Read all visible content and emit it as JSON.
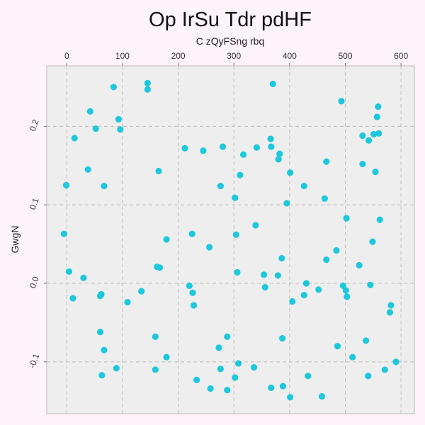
{
  "chart_data": {
    "type": "scatter",
    "title": "Op IrSu Tdr pdHF",
    "xlabel": "C zQyFSng rbq",
    "ylabel": "GwgN",
    "x_axis_position": "top",
    "xlim": [
      -36,
      624
    ],
    "ylim": [
      -0.166,
      0.277
    ],
    "x_ticks": [
      0,
      100,
      200,
      300,
      400,
      500,
      600
    ],
    "y_ticks": [
      -0.1,
      0.0,
      0.1,
      0.2
    ],
    "x_tick_labels": [
      "0",
      "100",
      "200",
      "300",
      "400",
      "500",
      "600"
    ],
    "y_tick_labels": [
      "-0.1",
      "0.0",
      "0.1",
      "0.2"
    ],
    "grid": true,
    "grid_style": "dashed",
    "colors": {
      "point": "#1ec8dc",
      "plot_background": "#eeeeee",
      "page_background": "#fdf3fa",
      "grid": "#bdbdbd",
      "frame": "#bbbbbb"
    },
    "points": [
      [
        -5,
        0.063
      ],
      [
        -1,
        0.125
      ],
      [
        4,
        0.015
      ],
      [
        11,
        -0.019
      ],
      [
        14,
        0.185
      ],
      [
        30,
        0.007
      ],
      [
        38,
        0.145
      ],
      [
        42,
        0.219
      ],
      [
        52,
        0.197
      ],
      [
        60,
        -0.062
      ],
      [
        60,
        -0.016
      ],
      [
        62,
        -0.014
      ],
      [
        63,
        -0.117
      ],
      [
        67,
        0.124
      ],
      [
        67,
        -0.085
      ],
      [
        84,
        0.25
      ],
      [
        89,
        -0.108
      ],
      [
        93,
        0.209
      ],
      [
        96,
        0.196
      ],
      [
        109,
        -0.024
      ],
      [
        134,
        -0.01
      ],
      [
        145,
        0.255
      ],
      [
        145,
        0.247
      ],
      [
        159,
        -0.068
      ],
      [
        159,
        -0.11
      ],
      [
        162,
        0.021
      ],
      [
        165,
        0.143
      ],
      [
        167,
        0.02
      ],
      [
        179,
        0.056
      ],
      [
        179,
        -0.094
      ],
      [
        212,
        0.172
      ],
      [
        220,
        -0.003
      ],
      [
        225,
        0.063
      ],
      [
        226,
        -0.012
      ],
      [
        228,
        -0.028
      ],
      [
        233,
        -0.123
      ],
      [
        245,
        0.169
      ],
      [
        256,
        0.046
      ],
      [
        258,
        -0.134
      ],
      [
        273,
        -0.082
      ],
      [
        276,
        0.124
      ],
      [
        276,
        -0.109
      ],
      [
        280,
        0.174
      ],
      [
        288,
        -0.136
      ],
      [
        288,
        -0.068
      ],
      [
        302,
        0.109
      ],
      [
        302,
        -0.12
      ],
      [
        304,
        0.062
      ],
      [
        306,
        0.014
      ],
      [
        308,
        -0.102
      ],
      [
        311,
        0.138
      ],
      [
        317,
        0.164
      ],
      [
        336,
        -0.107
      ],
      [
        339,
        0.074
      ],
      [
        341,
        0.173
      ],
      [
        354,
        0.011
      ],
      [
        356,
        -0.005
      ],
      [
        366,
        0.184
      ],
      [
        367,
        0.174
      ],
      [
        367,
        -0.133
      ],
      [
        370,
        0.254
      ],
      [
        379,
        0.01
      ],
      [
        380,
        0.158
      ],
      [
        382,
        0.165
      ],
      [
        386,
        0.032
      ],
      [
        387,
        -0.07
      ],
      [
        388,
        -0.131
      ],
      [
        395,
        0.102
      ],
      [
        401,
        0.141
      ],
      [
        405,
        -0.023
      ],
      [
        426,
        0.124
      ],
      [
        426,
        -0.015
      ],
      [
        430,
        0.0
      ],
      [
        433,
        -0.118
      ],
      [
        452,
        -0.008
      ],
      [
        458,
        -0.144
      ],
      [
        463,
        0.108
      ],
      [
        466,
        0.155
      ],
      [
        466,
        0.03
      ],
      [
        484,
        0.042
      ],
      [
        486,
        -0.08
      ],
      [
        493,
        0.232
      ],
      [
        496,
        -0.003
      ],
      [
        501,
        -0.009
      ],
      [
        502,
        0.083
      ],
      [
        503,
        -0.017
      ],
      [
        513,
        -0.094
      ],
      [
        525,
        0.023
      ],
      [
        531,
        0.188
      ],
      [
        531,
        0.152
      ],
      [
        537,
        -0.073
      ],
      [
        541,
        -0.118
      ],
      [
        542,
        0.182
      ],
      [
        545,
        -0.002
      ],
      [
        549,
        0.053
      ],
      [
        551,
        0.19
      ],
      [
        554,
        0.142
      ],
      [
        557,
        0.212
      ],
      [
        559,
        0.225
      ],
      [
        560,
        0.191
      ],
      [
        562,
        0.081
      ],
      [
        571,
        -0.11
      ],
      [
        580,
        -0.037
      ],
      [
        582,
        -0.028
      ],
      [
        591,
        -0.1
      ],
      [
        401,
        -0.145
      ]
    ]
  }
}
